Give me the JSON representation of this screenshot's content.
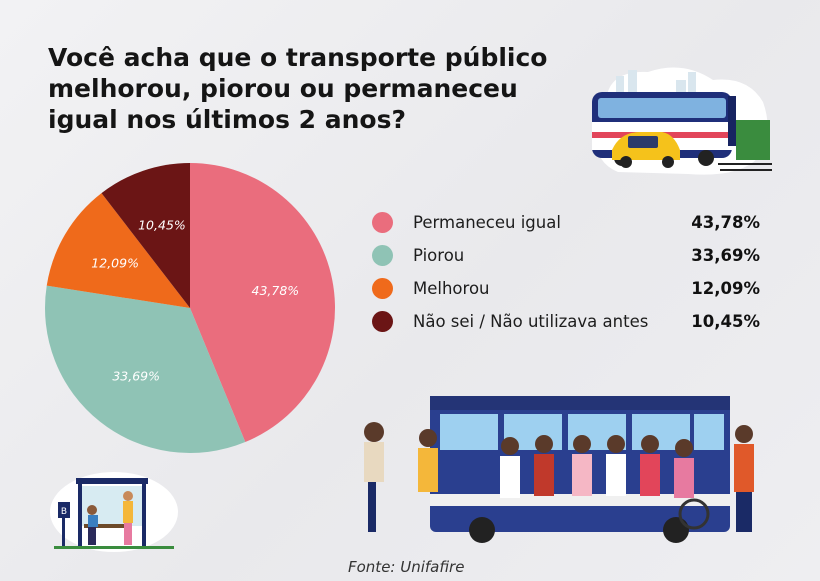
{
  "title": "Você acha que o transporte público melhorou, piorou ou permaneceu igual nos últimos 2 anos?",
  "source": "Fonte: Unifafire",
  "chart_data": {
    "type": "pie",
    "title": "Você acha que o transporte público melhorou, piorou ou permaneceu igual nos últimos 2 anos?",
    "categories": [
      "Permaneceu igual",
      "Piorou",
      "Melhorou",
      "Não sei / Não utilizava antes"
    ],
    "values": [
      43.78,
      33.69,
      12.09,
      10.45
    ],
    "labels": [
      "43,78%",
      "33,69%",
      "12,09%",
      "10,45%"
    ],
    "colors": [
      "#ea6d7d",
      "#8fc3b5",
      "#ef6a1b",
      "#6b1515"
    ],
    "legend_placement": "right"
  },
  "legend": [
    {
      "label": "Permaneceu igual",
      "value": "43,78%",
      "color": "#ea6d7d"
    },
    {
      "label": "Piorou",
      "value": "33,69%",
      "color": "#8fc3b5"
    },
    {
      "label": "Melhorou",
      "value": "12,09%",
      "color": "#ef6a1b"
    },
    {
      "label": "Não sei / Não utilizava antes",
      "value": "10,45%",
      "color": "#6b1515"
    }
  ],
  "illustrations": {
    "top_right": "bus-and-car-icon",
    "bottom_left": "bus-stop-icon",
    "bottom_right": "bus-passengers-icon"
  }
}
